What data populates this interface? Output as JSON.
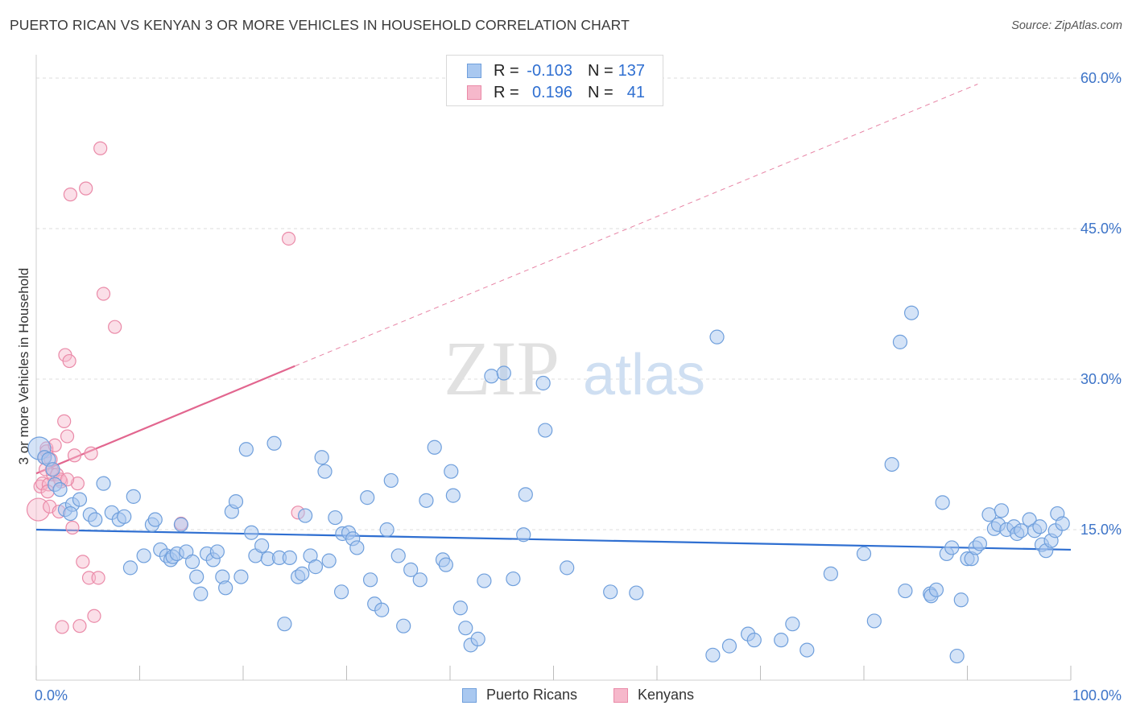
{
  "title": "PUERTO RICAN VS KENYAN 3 OR MORE VEHICLES IN HOUSEHOLD CORRELATION CHART",
  "source": "Source: ZipAtlas.com",
  "watermark": {
    "zip": "ZIP",
    "atlas": "atlas"
  },
  "legend_top": {
    "rows": [
      {
        "r_label": "R =",
        "r_value": "-0.103",
        "n_label": "N =",
        "n_value": "137"
      },
      {
        "r_label": "R =",
        "r_value": "0.196",
        "n_label": "N =",
        "n_value": "41"
      }
    ]
  },
  "legend_bottom": {
    "series1": "Puerto Ricans",
    "series2": "Kenyans"
  },
  "colors": {
    "blue_fill": "#a9c8f0",
    "blue_stroke": "#6f9fdc",
    "blue_line": "#2f6fd1",
    "pink_fill": "#f6b8cb",
    "pink_stroke": "#ea8aa8",
    "pink_line": "#e2668f",
    "tick_text": "#3d74c8",
    "grid": "#dcdcdc"
  },
  "chart_data": {
    "type": "scatter",
    "title": "PUERTO RICAN VS KENYAN 3 OR MORE VEHICLES IN HOUSEHOLD CORRELATION CHART",
    "xlabel": "",
    "ylabel": "3 or more Vehicles in Household",
    "xlim": [
      0,
      100
    ],
    "ylim": [
      0,
      60
    ],
    "x_tick_labels": [
      "0.0%",
      "100.0%"
    ],
    "y_ticks": [
      15,
      30,
      45,
      60
    ],
    "y_tick_labels": [
      "15.0%",
      "30.0%",
      "45.0%",
      "60.0%"
    ],
    "grid": true,
    "legend_position": "top-center",
    "series": [
      {
        "name": "Puerto Ricans",
        "R": -0.103,
        "N": 137,
        "trend": {
          "x": [
            0,
            100
          ],
          "y": [
            15.0,
            13.0
          ]
        },
        "points": [
          [
            0.3,
            23.1
          ],
          [
            0.8,
            22.2
          ],
          [
            1.2,
            22.0
          ],
          [
            1.6,
            21.0
          ],
          [
            1.8,
            19.5
          ],
          [
            2.3,
            19.0
          ],
          [
            2.8,
            17.0
          ],
          [
            3.5,
            17.5
          ],
          [
            4.2,
            18.0
          ],
          [
            5.2,
            16.5
          ],
          [
            3.3,
            16.6
          ],
          [
            5.7,
            16.0
          ],
          [
            6.5,
            19.6
          ],
          [
            7.3,
            16.7
          ],
          [
            8.0,
            16.0
          ],
          [
            8.5,
            16.3
          ],
          [
            9.1,
            11.2
          ],
          [
            9.4,
            18.3
          ],
          [
            10.4,
            12.4
          ],
          [
            11.2,
            15.5
          ],
          [
            11.5,
            16.0
          ],
          [
            12.0,
            13.0
          ],
          [
            12.6,
            12.4
          ],
          [
            13.0,
            12.0
          ],
          [
            13.2,
            12.3
          ],
          [
            13.6,
            12.6
          ],
          [
            14.0,
            15.5
          ],
          [
            14.5,
            12.8
          ],
          [
            15.1,
            11.8
          ],
          [
            15.5,
            10.3
          ],
          [
            15.9,
            8.6
          ],
          [
            16.5,
            12.6
          ],
          [
            17.1,
            12.0
          ],
          [
            17.5,
            12.8
          ],
          [
            18.0,
            10.3
          ],
          [
            18.3,
            9.2
          ],
          [
            18.9,
            16.8
          ],
          [
            19.3,
            17.8
          ],
          [
            19.8,
            10.3
          ],
          [
            20.3,
            23.0
          ],
          [
            20.8,
            14.7
          ],
          [
            21.2,
            12.4
          ],
          [
            21.8,
            13.4
          ],
          [
            22.4,
            12.1
          ],
          [
            23.0,
            23.6
          ],
          [
            23.5,
            12.2
          ],
          [
            24.0,
            5.6
          ],
          [
            24.5,
            12.2
          ],
          [
            25.3,
            10.3
          ],
          [
            25.7,
            10.6
          ],
          [
            26.0,
            16.4
          ],
          [
            26.5,
            12.4
          ],
          [
            27.0,
            11.3
          ],
          [
            27.6,
            22.2
          ],
          [
            27.9,
            20.8
          ],
          [
            28.3,
            11.9
          ],
          [
            28.9,
            16.2
          ],
          [
            29.5,
            8.8
          ],
          [
            29.6,
            14.6
          ],
          [
            30.2,
            14.7
          ],
          [
            30.6,
            14.1
          ],
          [
            31.0,
            13.2
          ],
          [
            32.0,
            18.2
          ],
          [
            32.3,
            10.0
          ],
          [
            32.7,
            7.6
          ],
          [
            33.4,
            7.0
          ],
          [
            33.9,
            15.0
          ],
          [
            34.3,
            19.9
          ],
          [
            35.0,
            12.4
          ],
          [
            35.5,
            5.4
          ],
          [
            36.2,
            11.0
          ],
          [
            37.1,
            10.0
          ],
          [
            37.7,
            17.9
          ],
          [
            38.5,
            23.2
          ],
          [
            39.3,
            12.0
          ],
          [
            39.6,
            11.5
          ],
          [
            40.1,
            20.8
          ],
          [
            40.3,
            18.4
          ],
          [
            41.0,
            7.2
          ],
          [
            41.5,
            5.2
          ],
          [
            42.0,
            3.5
          ],
          [
            42.7,
            4.1
          ],
          [
            43.3,
            9.9
          ],
          [
            44.0,
            30.3
          ],
          [
            45.2,
            30.6
          ],
          [
            46.1,
            10.1
          ],
          [
            47.1,
            14.5
          ],
          [
            47.3,
            18.5
          ],
          [
            49.0,
            29.6
          ],
          [
            49.2,
            24.9
          ],
          [
            51.3,
            11.2
          ],
          [
            55.5,
            8.8
          ],
          [
            58.0,
            8.7
          ],
          [
            65.4,
            2.5
          ],
          [
            65.8,
            34.2
          ],
          [
            67.0,
            3.4
          ],
          [
            68.8,
            4.6
          ],
          [
            69.4,
            4.0
          ],
          [
            72.0,
            4.0
          ],
          [
            73.1,
            5.6
          ],
          [
            74.5,
            3.0
          ],
          [
            76.8,
            10.6
          ],
          [
            80.0,
            12.6
          ],
          [
            81.0,
            5.9
          ],
          [
            82.7,
            21.5
          ],
          [
            83.5,
            33.7
          ],
          [
            84.0,
            8.9
          ],
          [
            84.6,
            36.6
          ],
          [
            86.4,
            8.6
          ],
          [
            86.5,
            8.4
          ],
          [
            87.0,
            9.0
          ],
          [
            87.6,
            17.7
          ],
          [
            88.0,
            12.6
          ],
          [
            88.5,
            13.2
          ],
          [
            89.0,
            2.4
          ],
          [
            89.4,
            8.0
          ],
          [
            90.0,
            12.1
          ],
          [
            90.4,
            12.1
          ],
          [
            90.8,
            13.2
          ],
          [
            91.2,
            13.6
          ],
          [
            92.1,
            16.5
          ],
          [
            92.6,
            15.1
          ],
          [
            93.0,
            15.5
          ],
          [
            93.3,
            16.9
          ],
          [
            93.8,
            15.0
          ],
          [
            94.5,
            15.3
          ],
          [
            94.8,
            14.6
          ],
          [
            95.2,
            14.9
          ],
          [
            96.0,
            16.0
          ],
          [
            96.5,
            14.9
          ],
          [
            97.0,
            15.3
          ],
          [
            97.2,
            13.5
          ],
          [
            97.6,
            12.9
          ],
          [
            98.1,
            13.9
          ],
          [
            98.5,
            14.9
          ],
          [
            98.7,
            16.6
          ],
          [
            99.2,
            15.6
          ]
        ]
      },
      {
        "name": "Kenyans",
        "R": 0.196,
        "N": 41,
        "trend": {
          "x": [
            0,
            25
          ],
          "y": [
            20.6,
            31.3
          ]
        },
        "trend_extended": {
          "x": [
            25,
            91
          ],
          "y": [
            31.3,
            59.4
          ]
        },
        "points": [
          [
            0.2,
            17.0
          ],
          [
            0.4,
            19.3
          ],
          [
            0.6,
            19.6
          ],
          [
            0.8,
            22.2
          ],
          [
            1.0,
            23.1
          ],
          [
            1.0,
            22.8
          ],
          [
            1.2,
            19.5
          ],
          [
            1.3,
            17.3
          ],
          [
            1.5,
            21.0
          ],
          [
            1.6,
            20.5
          ],
          [
            1.8,
            23.4
          ],
          [
            2.0,
            20.5
          ],
          [
            2.2,
            16.8
          ],
          [
            2.4,
            19.8
          ],
          [
            2.5,
            5.3
          ],
          [
            2.7,
            25.8
          ],
          [
            2.8,
            32.4
          ],
          [
            3.0,
            24.3
          ],
          [
            3.2,
            31.8
          ],
          [
            3.3,
            48.4
          ],
          [
            3.5,
            15.2
          ],
          [
            3.7,
            22.4
          ],
          [
            4.0,
            19.6
          ],
          [
            4.2,
            5.4
          ],
          [
            4.5,
            11.8
          ],
          [
            4.8,
            49.0
          ],
          [
            5.1,
            10.2
          ],
          [
            5.3,
            22.6
          ],
          [
            5.6,
            6.4
          ],
          [
            6.0,
            10.2
          ],
          [
            6.2,
            53.0
          ],
          [
            6.5,
            38.5
          ],
          [
            7.6,
            35.2
          ],
          [
            14.0,
            15.6
          ],
          [
            24.4,
            44.0
          ],
          [
            25.3,
            16.7
          ],
          [
            1.4,
            22.0
          ],
          [
            0.9,
            21.0
          ],
          [
            2.3,
            20.0
          ],
          [
            1.1,
            18.8
          ],
          [
            3.0,
            20.0
          ]
        ]
      }
    ]
  }
}
